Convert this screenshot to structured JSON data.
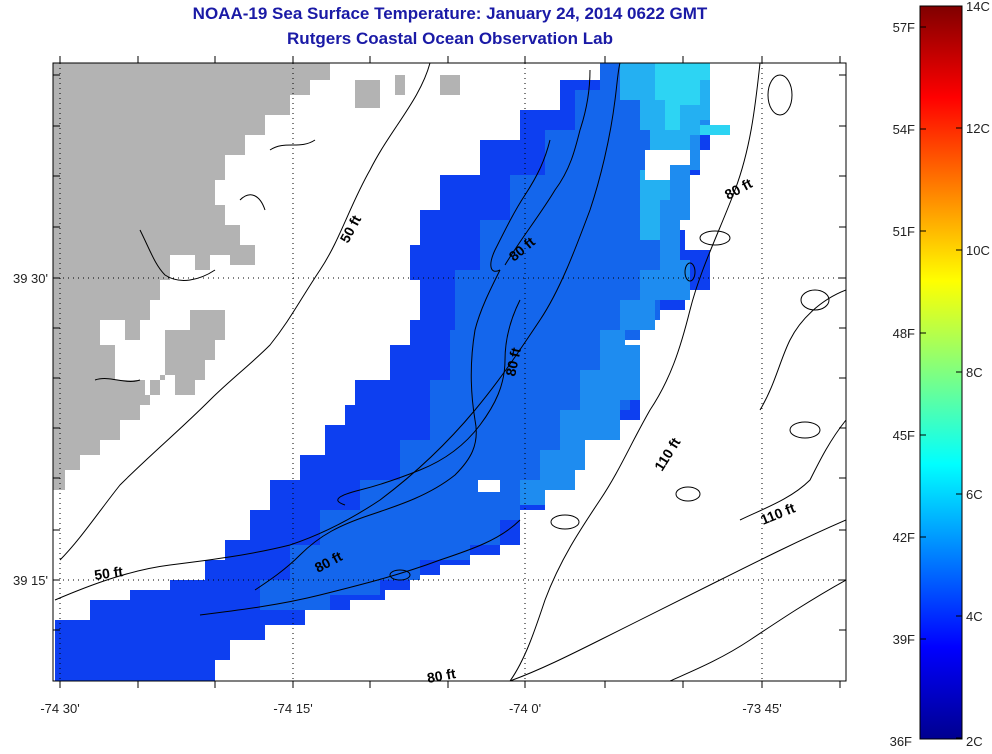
{
  "title": {
    "line1": "NOAA-19 Sea Surface Temperature:  January 24, 2014 0622 GMT",
    "line2": "Rutgers Coastal Ocean Observation Lab"
  },
  "map": {
    "x_ticks": [
      {
        "lon": -74.5,
        "label": "-74 30'"
      },
      {
        "lon": -74.25,
        "label": "-74 15'"
      },
      {
        "lon": -74.0,
        "label": "-74 0'"
      },
      {
        "lon": -73.75,
        "label": "-73 45'"
      }
    ],
    "y_ticks": [
      {
        "lat": 39.5,
        "label": "39 30'"
      },
      {
        "lat": 39.25,
        "label": "39 15'"
      }
    ],
    "contour_labels": [
      {
        "text": "50 ft",
        "id": "contour-label-50ft-north"
      },
      {
        "text": "50 ft",
        "id": "contour-label-50ft-south"
      },
      {
        "text": "80 ft",
        "id": "contour-label-80ft-ne"
      },
      {
        "text": "80 ft",
        "id": "contour-label-80ft-north"
      },
      {
        "text": "80 ft",
        "id": "contour-label-80ft-mid"
      },
      {
        "text": "80 ft",
        "id": "contour-label-80ft-south"
      },
      {
        "text": "80 ft",
        "id": "contour-label-80ft-bottom"
      },
      {
        "text": "110 ft",
        "id": "contour-label-110ft-mid"
      },
      {
        "text": "110 ft",
        "id": "contour-label-110ft-east"
      }
    ],
    "colors": {
      "land": "#b3b3b3",
      "water_no_data": "#ffffff",
      "sst_cold": "#0c3ae6",
      "sst_mid": "#1e7ef0",
      "sst_warm": "#2ad6f2"
    }
  },
  "colorbar": {
    "fahrenheit_labels": [
      "57F",
      "54F",
      "51F",
      "48F",
      "45F",
      "42F",
      "39F",
      "36F"
    ],
    "celsius_labels": [
      "14C",
      "12C",
      "10C",
      "8C",
      "6C",
      "4C",
      "2C"
    ],
    "range_c": [
      2,
      14
    ],
    "range_f": [
      36,
      57
    ],
    "colormap": "jet",
    "stops": [
      "#00008f",
      "#0000ff",
      "#0080ff",
      "#00ffff",
      "#80ff80",
      "#ffff00",
      "#ff8000",
      "#ff0000",
      "#800000"
    ]
  }
}
